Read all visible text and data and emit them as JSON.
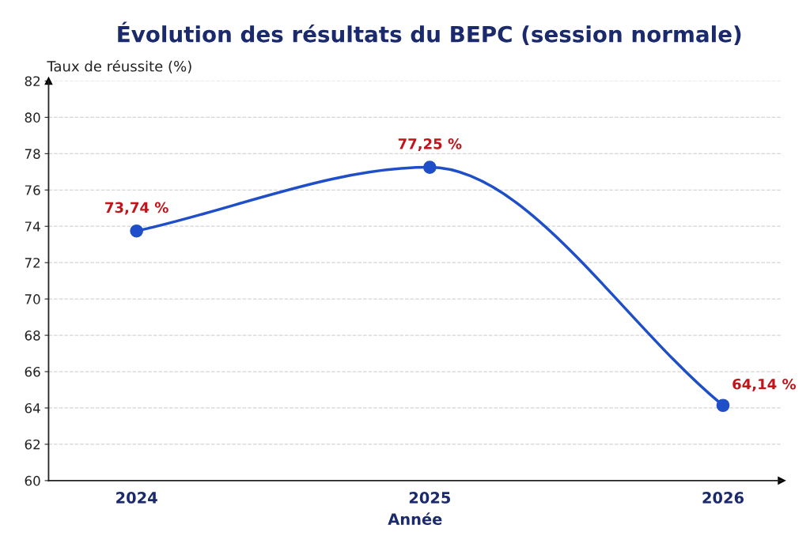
{
  "chart_data": {
    "type": "line",
    "title": "Évolution des résultats du BEPC (session normale)",
    "xlabel": "Année",
    "ylabel": "Taux de réussite (%)",
    "categories": [
      "2024",
      "2025",
      "2026"
    ],
    "series": [
      {
        "color": "#1f4fc8",
        "values": [
          73.74,
          77.25,
          64.14
        ],
        "value_labels": [
          "73,74 %",
          "77,25 %",
          "64,14 %"
        ]
      }
    ],
    "ylim": [
      60,
      82
    ],
    "yticks": [
      60,
      62,
      64,
      66,
      68,
      70,
      72,
      74,
      76,
      78,
      80,
      82
    ],
    "grid": "y",
    "marker": "circle",
    "line_style": "solid"
  }
}
